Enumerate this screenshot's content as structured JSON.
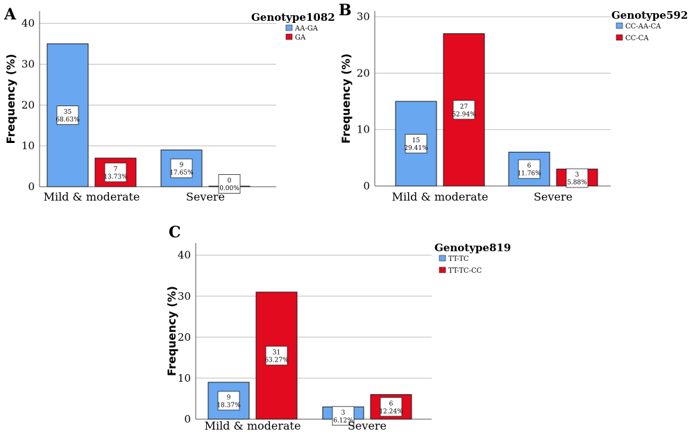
{
  "colors": {
    "blue": "#69a8f0",
    "red": "#e10a1e"
  },
  "chart_data": [
    {
      "type": "bar",
      "panel": "A",
      "legend_title": "Genotype1082",
      "legend_position": "top-right",
      "categories": [
        "Mild & moderate",
        "Severe"
      ],
      "ylabel": "Frequency (%)",
      "ylim": [
        0,
        43
      ],
      "yticks": [
        0,
        10,
        20,
        30,
        40
      ],
      "grid": true,
      "series": [
        {
          "name": "AA-GA",
          "color": "#69a8f0",
          "values": [
            35,
            9
          ],
          "labels": [
            "68.63%",
            "17.65%"
          ]
        },
        {
          "name": "GA",
          "color": "#e10a1e",
          "values": [
            7,
            0
          ],
          "labels": [
            "13.73%",
            "0.00%"
          ]
        }
      ]
    },
    {
      "type": "bar",
      "panel": "B",
      "legend_title": "Genotype592",
      "legend_position": "top-right",
      "categories": [
        "Mild & moderate",
        "Severe"
      ],
      "ylabel": "Frequency (%)",
      "ylim": [
        0,
        31
      ],
      "yticks": [
        0,
        10,
        20,
        30
      ],
      "grid": true,
      "series": [
        {
          "name": "CC-AA-CA",
          "color": "#69a8f0",
          "values": [
            15,
            6
          ],
          "labels": [
            "29.41%",
            "11.76%"
          ]
        },
        {
          "name": "CC-CA",
          "color": "#e10a1e",
          "values": [
            27,
            3
          ],
          "labels": [
            "52.94%",
            "5.88%"
          ]
        }
      ]
    },
    {
      "type": "bar",
      "panel": "C",
      "legend_title": "Genotype819",
      "legend_position": "top-right",
      "categories": [
        "Mild & moderate",
        "Severe"
      ],
      "ylabel": "Frequency (%)",
      "ylim": [
        0,
        43
      ],
      "yticks": [
        0,
        10,
        20,
        30,
        40
      ],
      "grid": true,
      "series": [
        {
          "name": "TT-TC",
          "color": "#69a8f0",
          "values": [
            9,
            3
          ],
          "labels": [
            "18.37%",
            "6.12%"
          ]
        },
        {
          "name": "TT-TC-CC",
          "color": "#e10a1e",
          "values": [
            31,
            6
          ],
          "labels": [
            "63.27%",
            "12.24%"
          ]
        }
      ]
    }
  ]
}
